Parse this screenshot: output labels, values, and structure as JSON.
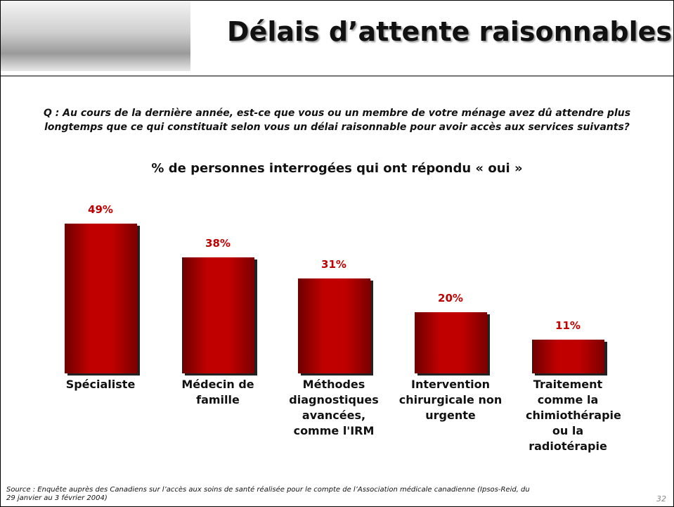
{
  "chart_data": {
    "type": "bar",
    "title": "Délais d’attente raisonnables",
    "question": "Q : Au cours de la dernière année, est-ce que vous ou un membre de votre ménage avez dû attendre plus longtemps que ce qui constituait selon vous un délai raisonnable pour avoir accès aux services suivants?",
    "subtitle": "% de personnes interrogées qui ont répondu « oui »",
    "categories": [
      "Spécialiste",
      "Médecin de famille",
      "Méthodes diagnostiques avancées, comme l'IRM",
      "Intervention chirurgicale non urgente",
      "Traitement comme la chimiothérapie ou la radiotérapie"
    ],
    "values": [
      49,
      38,
      31,
      20,
      11
    ],
    "value_labels": [
      "49%",
      "38%",
      "31%",
      "20%",
      "11%"
    ],
    "color": "#c00000",
    "source": "Source : Enquête auprès des Canadiens sur l’accès aux soins de santé réalisée pour le compte de l’Association médicale canadienne (Ipsos-Reid, du 29 janvier au 3 février 2004)",
    "page_number": "32"
  }
}
